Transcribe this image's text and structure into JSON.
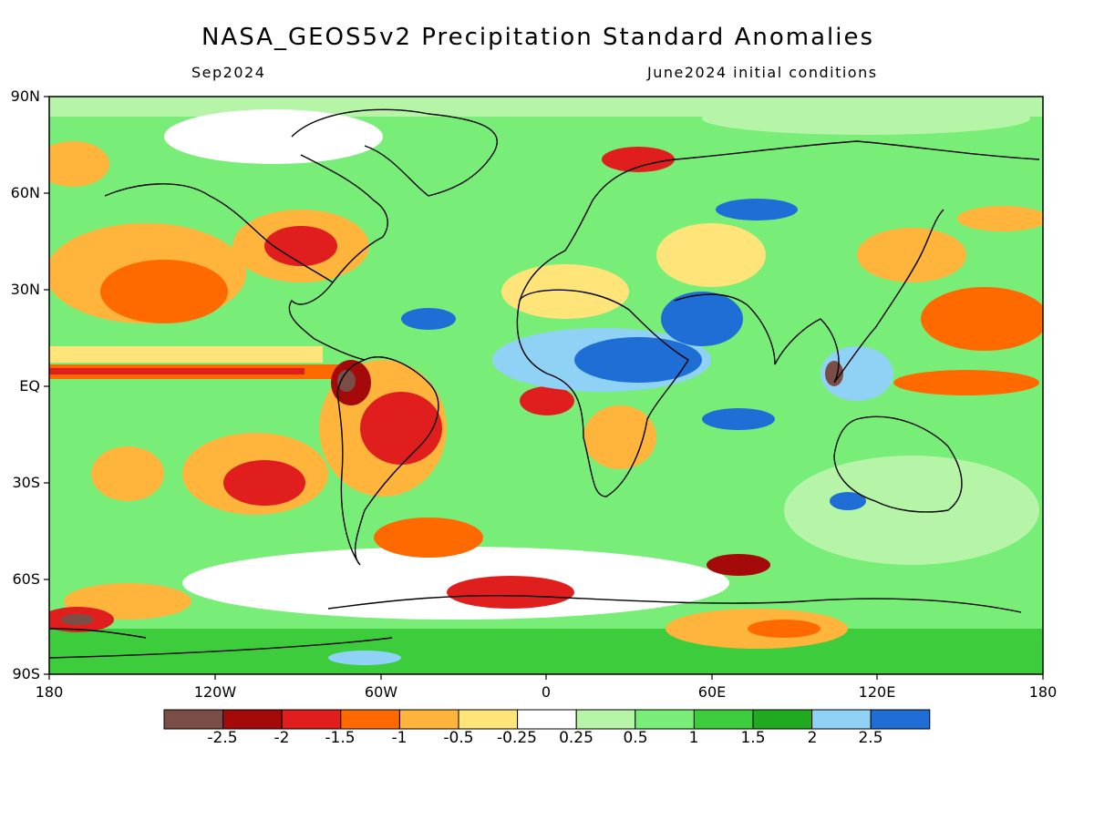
{
  "title": "NASA_GEOS5v2 Precipitation Standard Anomalies",
  "subtitle_left": "Sep2024",
  "subtitle_right": "June2024 initial conditions",
  "lat_labels": [
    "90N",
    "60N",
    "30N",
    "EQ",
    "30S",
    "60S",
    "90S"
  ],
  "lon_labels": [
    "180",
    "120W",
    "60W",
    "0",
    "60E",
    "120E",
    "180"
  ],
  "colorbar": {
    "colors": [
      "#7a4e47",
      "#a50a0a",
      "#e01e1e",
      "#ff6a00",
      "#ffb43c",
      "#ffe47a",
      "#ffffff",
      "#b6f5a8",
      "#78ee78",
      "#3ccc3c",
      "#20aa20",
      "#90d2f5",
      "#1e6ed6"
    ],
    "labels": [
      "-2.5",
      "-2",
      "-1.5",
      "-1",
      "-0.5",
      "-0.25",
      "0.25",
      "0.5",
      "1",
      "1.5",
      "2",
      "2.5"
    ]
  }
}
